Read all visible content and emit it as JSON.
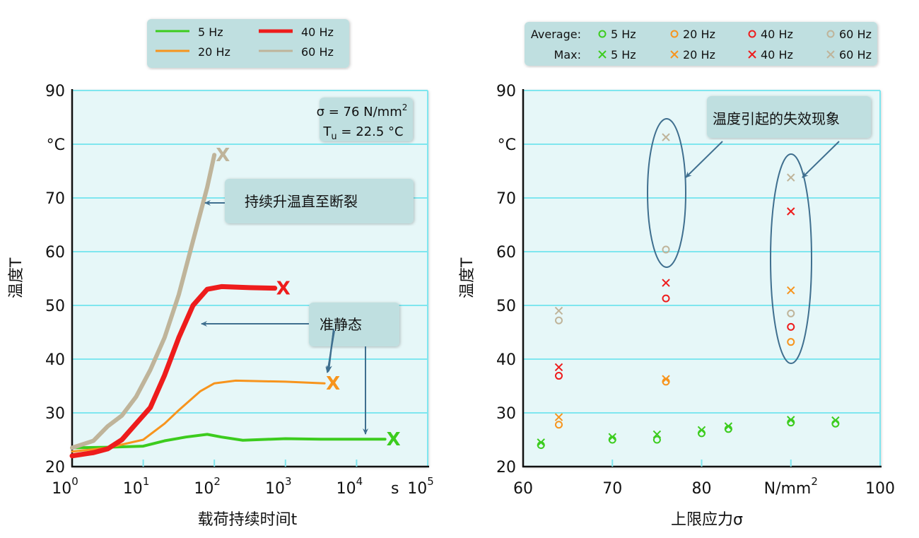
{
  "colors": {
    "5Hz": "#3ccc1e",
    "20Hz": "#f7941d",
    "40Hz": "#ee1c1c",
    "60Hz": "#bfb49a",
    "plot_bg": "#e6f7f8",
    "grid": "#7fe6ef",
    "box": "#bfdfe0",
    "arrow": "#3f6f8f"
  },
  "chart_data": [
    {
      "type": "line",
      "title": "",
      "xlabel": "载荷持续时间t",
      "x_unit": "s",
      "ylabel": "温度T",
      "y_unit": "°C",
      "xscale": "log",
      "xlim_log10": [
        0,
        5
      ],
      "x_tick_labels": [
        {
          "base": "10",
          "exp": "0"
        },
        {
          "base": "10",
          "exp": "1"
        },
        {
          "base": "10",
          "exp": "2"
        },
        {
          "base": "10",
          "exp": "3"
        },
        {
          "base": "10",
          "exp": "4"
        },
        {
          "base": "10",
          "exp": "5"
        }
      ],
      "ylim": [
        20,
        90
      ],
      "y_ticks": [
        "20",
        "30",
        "40",
        "50",
        "60",
        "70",
        "°C",
        "90"
      ],
      "grid": true,
      "legend_position": "top-center",
      "info_box": {
        "line1": "σ = 76 N/mm",
        "line1_sup": "2",
        "line2_main": "T",
        "line2_sub": "u",
        "line2_rest": " = 22.5 °C"
      },
      "annotations": [
        "持续升温直至断裂",
        "准静态"
      ],
      "failure_marker": "X",
      "series": [
        {
          "name": "5 Hz",
          "key": "5Hz",
          "width": 4,
          "log10_t": [
            0,
            0.5,
            1,
            1.3,
            1.6,
            1.9,
            2.1,
            2.4,
            3,
            3.5,
            4,
            4.4
          ],
          "T": [
            23.5,
            23.6,
            23.8,
            24.8,
            25.5,
            26,
            25.5,
            24.9,
            25.2,
            25.1,
            25.1,
            25.1
          ],
          "failure": true
        },
        {
          "name": "20 Hz",
          "key": "20Hz",
          "width": 3,
          "log10_t": [
            0,
            0.5,
            1,
            1.3,
            1.5,
            1.8,
            2,
            2.3,
            3,
            3.55
          ],
          "T": [
            22.8,
            23.5,
            25,
            28,
            30.5,
            34,
            35.5,
            36,
            35.8,
            35.5
          ],
          "failure": true
        },
        {
          "name": "40 Hz",
          "key": "40Hz",
          "width": 7,
          "log10_t": [
            0,
            0.3,
            0.5,
            0.7,
            0.9,
            1.1,
            1.3,
            1.5,
            1.7,
            1.9,
            2.1,
            2.5,
            2.85
          ],
          "T": [
            22,
            22.6,
            23.3,
            25,
            28,
            31,
            37,
            44,
            50,
            53,
            53.5,
            53.3,
            53.2
          ],
          "failure": true
        },
        {
          "name": "60 Hz",
          "key": "60Hz",
          "width": 6,
          "log10_t": [
            0,
            0.3,
            0.5,
            0.7,
            0.9,
            1.1,
            1.3,
            1.5,
            1.7,
            1.9,
            2.0
          ],
          "T": [
            23.5,
            24.8,
            27.5,
            29.5,
            33,
            38,
            44,
            52,
            62,
            72,
            78
          ],
          "failure": true
        }
      ]
    },
    {
      "type": "scatter",
      "xlabel": "上限应力σ",
      "x_unit": "N/mm",
      "x_unit_sup": "2",
      "ylabel": "温度T",
      "y_unit": "°C",
      "xlim": [
        60,
        100
      ],
      "x_ticks": [
        "60",
        "70",
        "80",
        "",
        "100"
      ],
      "ylim": [
        20,
        90
      ],
      "y_ticks": [
        "20",
        "30",
        "40",
        "50",
        "60",
        "70",
        "°C",
        "90"
      ],
      "grid": true,
      "legend_position": "top",
      "legend_rows": [
        "Average:",
        "Max:"
      ],
      "annotations": [
        "温度引起的失效现象"
      ],
      "series": [
        {
          "name": "5 Hz",
          "key": "5Hz",
          "kind": "Average",
          "marker": "o",
          "x": [
            62,
            70,
            75,
            80,
            83,
            90,
            95
          ],
          "y": [
            24,
            25,
            25,
            26.2,
            27,
            28.2,
            28
          ]
        },
        {
          "name": "20 Hz",
          "key": "20Hz",
          "kind": "Average",
          "marker": "o",
          "x": [
            64,
            76,
            90
          ],
          "y": [
            27.8,
            35.8,
            43.2
          ]
        },
        {
          "name": "40 Hz",
          "key": "40Hz",
          "kind": "Average",
          "marker": "o",
          "x": [
            64,
            76,
            90
          ],
          "y": [
            36.9,
            51.3,
            46
          ]
        },
        {
          "name": "60 Hz",
          "key": "60Hz",
          "kind": "Average",
          "marker": "o",
          "x": [
            64,
            76,
            90
          ],
          "y": [
            47.2,
            60.4,
            48.5
          ]
        },
        {
          "name": "5 Hz",
          "key": "5Hz",
          "kind": "Max",
          "marker": "x",
          "x": [
            62,
            70,
            75,
            80,
            83,
            90,
            95
          ],
          "y": [
            24.5,
            25.5,
            26,
            26.8,
            27.5,
            28.7,
            28.6
          ]
        },
        {
          "name": "20 Hz",
          "key": "20Hz",
          "kind": "Max",
          "marker": "x",
          "x": [
            64,
            76,
            90
          ],
          "y": [
            29.2,
            36.3,
            52.8
          ]
        },
        {
          "name": "40 Hz",
          "key": "40Hz",
          "kind": "Max",
          "marker": "x",
          "x": [
            64,
            76,
            90
          ],
          "y": [
            38.5,
            54.2,
            67.5
          ]
        },
        {
          "name": "60 Hz",
          "key": "60Hz",
          "kind": "Max",
          "marker": "x",
          "x": [
            64,
            76,
            90
          ],
          "y": [
            49,
            81.3,
            73.8
          ]
        }
      ]
    }
  ]
}
